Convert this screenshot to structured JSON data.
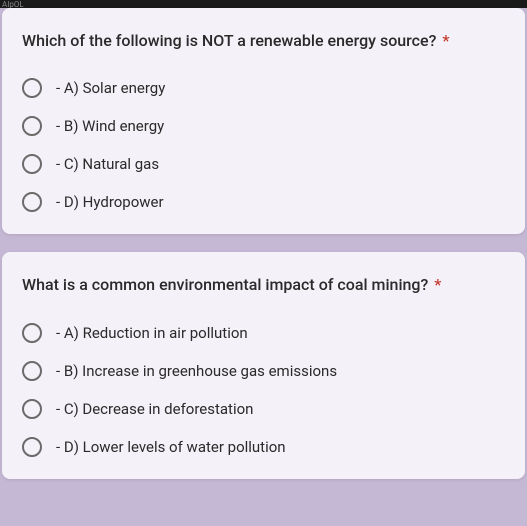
{
  "top_bar_text": "AIpOL",
  "questions": [
    {
      "prompt": "Which of the following is NOT a renewable energy source?",
      "required_mark": "*",
      "options": [
        "- A) Solar energy",
        "- B) Wind energy",
        "- C) Natural gas",
        "- D) Hydropower"
      ]
    },
    {
      "prompt": "What is a common environmental impact of coal mining?",
      "required_mark": "*",
      "options": [
        "- A) Reduction in air pollution",
        "- B) Increase in greenhouse gas emissions",
        "- C) Decrease in deforestation",
        "- D) Lower levels of water pollution"
      ]
    }
  ],
  "colors": {
    "page_bg": "#c5b8d4",
    "card_bg": "#f5f1f8",
    "text": "#2a2a2a",
    "required": "#c5372c",
    "radio_border": "#6b6b6b"
  }
}
